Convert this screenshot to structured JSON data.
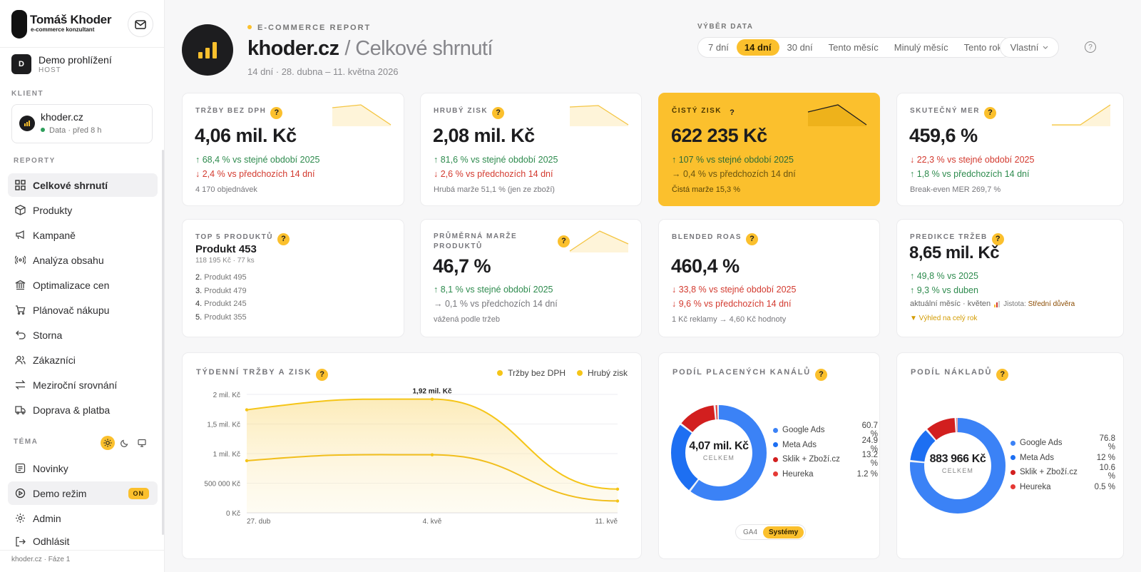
{
  "brand": {
    "name": "Tomáš Khoder",
    "tagline": "e-commerce konzultant"
  },
  "user": {
    "initial": "D",
    "name": "Demo prohlížení",
    "role": "HOST"
  },
  "client_section_label": "KLIENT",
  "client": {
    "name": "khoder.cz",
    "data_label": "Data",
    "updated": "· před 8 h"
  },
  "nav_section_label": "REPORTY",
  "nav": [
    {
      "label": "Celkové shrnutí",
      "icon": "grid-icon"
    },
    {
      "label": "Produkty",
      "icon": "box-icon"
    },
    {
      "label": "Kampaně",
      "icon": "megaphone-icon"
    },
    {
      "label": "Analýza obsahu",
      "icon": "broadcast-icon"
    },
    {
      "label": "Optimalizace cen",
      "icon": "bank-icon"
    },
    {
      "label": "Plánovač nákupu",
      "icon": "cart-icon"
    },
    {
      "label": "Storna",
      "icon": "undo-icon"
    },
    {
      "label": "Zákazníci",
      "icon": "users-icon"
    },
    {
      "label": "Meziroční srovnání",
      "icon": "swap-icon"
    },
    {
      "label": "Doprava & platba",
      "icon": "truck-icon"
    }
  ],
  "theme_label": "TÉMA",
  "bottom_nav": [
    {
      "label": "Novinky",
      "icon": "list-icon"
    },
    {
      "label": "Demo režim",
      "icon": "play-circle-icon",
      "badge": "ON"
    },
    {
      "label": "Admin",
      "icon": "gear-icon"
    },
    {
      "label": "Odhlásit",
      "icon": "logout-icon"
    }
  ],
  "footer": "khoder.cz · Fáze 1",
  "header": {
    "eyebrow": "E-COMMERCE REPORT",
    "title": "khoder.cz",
    "subtitle": "/ Celkové shrnutí",
    "period": "14 dní · 28. dubna – 11. května 2026"
  },
  "date_select": {
    "label": "VÝBĚR DATA",
    "options": [
      "7 dní",
      "14 dní",
      "30 dní",
      "Tento měsíc",
      "Minulý měsíc",
      "Tento rok"
    ],
    "active": "14 dní",
    "custom": "Vlastní"
  },
  "kpis": [
    {
      "label": "TRŽBY BEZ DPH",
      "value": "4,06 mil. Kč",
      "yoy": "↑ 68,4 % vs stejné období 2025",
      "pop": "↓ 2,4 % vs předchozích 14 dní",
      "note": "4 170 objednávek"
    },
    {
      "label": "HRUBÝ ZISK",
      "value": "2,08 mil. Kč",
      "yoy": "↑ 81,6 % vs stejné období 2025",
      "pop": "↓ 2,6 % vs předchozích 14 dní",
      "note": "Hrubá marže 51,1 % (jen ze zboží)"
    },
    {
      "label": "ČISTÝ ZISK",
      "value": "622 235 Kč",
      "yoy": "↑ 107 % vs stejné období 2025",
      "pop": "→ 0,4 % vs předchozích 14 dní",
      "note": "Čistá marže 15,3 %"
    },
    {
      "label": "SKUTEČNÝ MER",
      "value": "459,6 %",
      "yoy": "↓ 22,3 % vs stejné období 2025",
      "pop": "↑ 1,8 % vs předchozích 14 dní",
      "note": "Break-even MER 269,7 %"
    }
  ],
  "top5": {
    "label": "TOP 5 PRODUKTŮ",
    "first": "Produkt 453",
    "first_meta": "118 195 Kč · 77 ks",
    "rest": [
      {
        "rank": "2.",
        "name": "Produkt 495"
      },
      {
        "rank": "3.",
        "name": "Produkt 479"
      },
      {
        "rank": "4.",
        "name": "Produkt 245"
      },
      {
        "rank": "5.",
        "name": "Produkt 355"
      }
    ]
  },
  "margin": {
    "label_1": "PRŮMĚRNÁ MARŽE",
    "label_2": "PRODUKTŮ",
    "value": "46,7 %",
    "yoy": "↑ 8,1 % vs stejné období 2025",
    "pop": "→ 0,1 % vs předchozích 14 dní",
    "note": "vážená podle tržeb"
  },
  "roas": {
    "label": "BLENDED ROAS",
    "value": "460,4 %",
    "yoy": "↓ 33,8 % vs stejné období 2025",
    "pop": "↓ 9,6 % vs předchozích 14 dní",
    "note": "1 Kč reklamy → 4,60 Kč hodnoty"
  },
  "forecast": {
    "label": "PREDIKCE TRŽEB",
    "value": "8,65 mil. Kč",
    "yoy": "↑ 49,8 % vs 2025",
    "mom": "↑ 9,3 % vs duben",
    "period": "aktuální měsíc · květen",
    "confidence_label": "Jistota:",
    "confidence": "Střední důvěra",
    "outlook": "▼ Výhled na celý rok"
  },
  "weekly": {
    "title": "TÝDENNÍ TRŽBY A ZISK",
    "legend": [
      "Tržby bez DPH",
      "Hrubý zisk"
    ],
    "peak_label": "1,92 mil. Kč"
  },
  "channels": {
    "title": "PODÍL PLACENÝCH KANÁLŮ",
    "center_value": "4,07 mil. Kč",
    "center_label": "CELKEM",
    "toggle": [
      "GA4",
      "Systémy"
    ],
    "toggle_active": "Systémy"
  },
  "costs": {
    "title": "PODÍL NÁKLADŮ",
    "center_value": "883 966 Kč",
    "center_label": "CELKEM"
  },
  "colors": {
    "accent": "#fbc02d",
    "up": "#2e8b4e",
    "down": "#d33a2f",
    "google": "#3b82f6",
    "meta": "#1d6ff2",
    "sklik": "#d21f1f",
    "heureka": "#e53935"
  },
  "chart_data": [
    {
      "type": "line",
      "title": "TÝDENNÍ TRŽBY A ZISK",
      "x": [
        "27. dub",
        "4. kvě",
        "11. kvě"
      ],
      "y_ticks": [
        "0 Kč",
        "500 000 Kč",
        "1 mil. Kč",
        "1,5 mil. Kč",
        "2 mil. Kč"
      ],
      "ylim": [
        0,
        2000000
      ],
      "grid": true,
      "legend": "top-right",
      "series": [
        {
          "name": "Tržby bez DPH",
          "values": [
            1740000,
            1920000,
            400000
          ]
        },
        {
          "name": "Hrubý zisk",
          "values": [
            880000,
            980000,
            200000
          ]
        }
      ],
      "annotations": [
        {
          "x": "4. kvě",
          "text": "1,92 mil. Kč"
        }
      ]
    },
    {
      "type": "pie",
      "title": "PODÍL PLACENÝCH KANÁLŮ",
      "categories": [
        "Google Ads",
        "Meta Ads",
        "Sklik + Zboží.cz",
        "Heureka"
      ],
      "values": [
        60.7,
        24.9,
        13.2,
        1.2
      ],
      "labels": [
        "60.7 %",
        "24.9 %",
        "13.2 %",
        "1.2 %"
      ],
      "legend": "right"
    },
    {
      "type": "pie",
      "title": "PODÍL NÁKLADŮ",
      "categories": [
        "Google Ads",
        "Meta Ads",
        "Sklik + Zboží.cz",
        "Heureka"
      ],
      "values": [
        76.8,
        12,
        10.6,
        0.5
      ],
      "labels": [
        "76.8 %",
        "12 %",
        "10.6 %",
        "0.5 %"
      ],
      "legend": "right"
    }
  ]
}
